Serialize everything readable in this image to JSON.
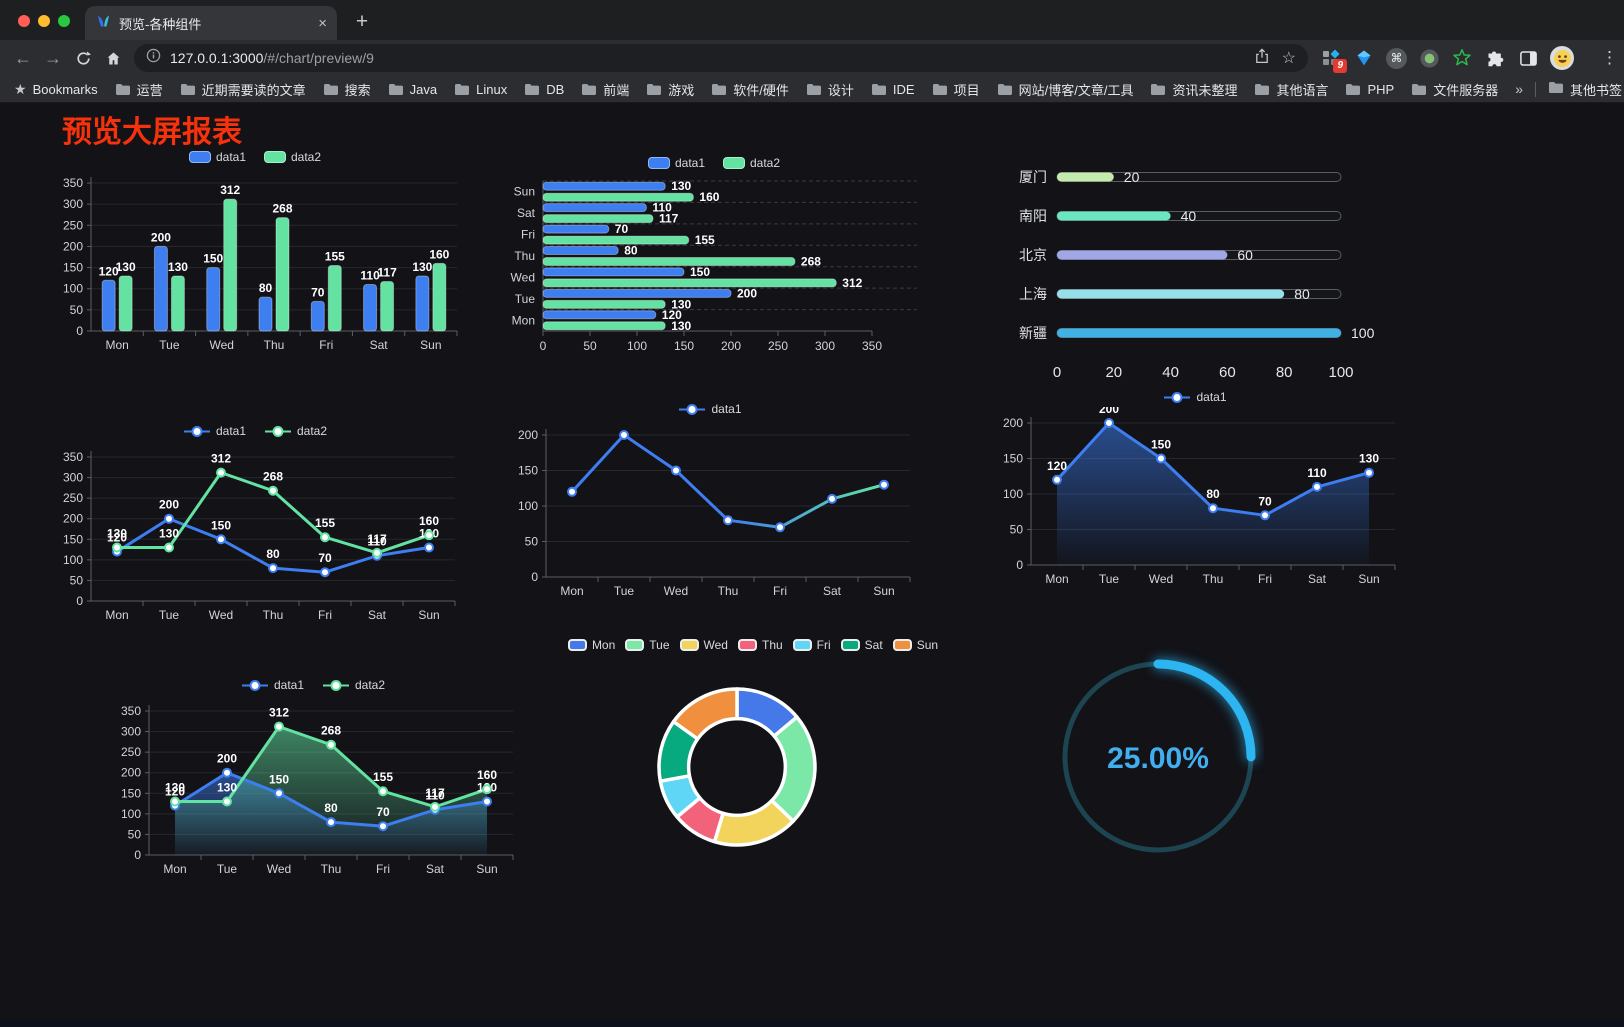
{
  "browser": {
    "traffic_lights": [
      "#ff5f57",
      "#febc2e",
      "#28c840"
    ],
    "tab_title": "预览-各种组件",
    "url_host": "127.0.0.1:3000",
    "url_path": "/#/chart/preview/9",
    "bookmarks_label": "Bookmarks",
    "bookmarks": [
      "运营",
      "近期需要读的文章",
      "搜索",
      "Java",
      "Linux",
      "DB",
      "前端",
      "游戏",
      "软件/硬件",
      "设计",
      "IDE",
      "项目",
      "网站/博客/文章/工具",
      "资讯未整理",
      "其他语言",
      "PHP",
      "文件服务器"
    ],
    "overflow_chevron": "»",
    "other_bookmarks": "其他书签",
    "extension_badge": "9"
  },
  "glyphs": {
    "close": "×",
    "plus": "+",
    "back": "←",
    "forward": "→",
    "menu": "⋮",
    "star": "☆",
    "bookmarks_star": "★",
    "command": "⌘"
  },
  "page": {
    "title": "预览大屏报表",
    "title_color": "#f5320b"
  },
  "theme": {
    "background": "#121217",
    "axis_color": "#5b5e66",
    "grid_color": "#26282e",
    "label_color": "#d2d4d9",
    "value_label_color": "#ffffff",
    "data1_color": "#3d7ef0",
    "data2_color": "#63e2a2"
  },
  "chart_data": [
    {
      "type": "bar",
      "title": "",
      "categories": [
        "Mon",
        "Tue",
        "Wed",
        "Thu",
        "Fri",
        "Sat",
        "Sun"
      ],
      "series": [
        {
          "name": "data1",
          "color": "#3d7ef0",
          "values": [
            120,
            200,
            150,
            80,
            70,
            110,
            130
          ]
        },
        {
          "name": "data2",
          "color": "#63e2a2",
          "values": [
            130,
            130,
            312,
            268,
            155,
            117,
            160
          ]
        }
      ],
      "ylim": [
        0,
        350
      ],
      "ystep": 50,
      "legend_position": "top",
      "grid": true
    },
    {
      "type": "hbar",
      "title": "",
      "categories": [
        "Mon",
        "Tue",
        "Wed",
        "Thu",
        "Fri",
        "Sat",
        "Sun"
      ],
      "categories_display_top_to_bottom": [
        "Sun",
        "Sat",
        "Fri",
        "Thu",
        "Wed",
        "Tue",
        "Mon"
      ],
      "series": [
        {
          "name": "data1",
          "color": "#3d7ef0",
          "values": [
            120,
            200,
            150,
            80,
            70,
            110,
            130
          ]
        },
        {
          "name": "data2",
          "color": "#63e2a2",
          "values": [
            130,
            130,
            312,
            268,
            155,
            117,
            160
          ]
        }
      ],
      "xlim": [
        0,
        350
      ],
      "xstep": 50,
      "legend_position": "top",
      "grid": true
    },
    {
      "type": "progress",
      "title": "",
      "xlim": [
        0,
        100
      ],
      "xticks": [
        0,
        20,
        40,
        60,
        80,
        100
      ],
      "rows": [
        {
          "label": "厦门",
          "value": 20,
          "color": "#c4ebad"
        },
        {
          "label": "南阳",
          "value": 40,
          "color": "#6be6c1"
        },
        {
          "label": "北京",
          "value": 60,
          "color": "#a0a7e6"
        },
        {
          "label": "上海",
          "value": 80,
          "color": "#96dee8"
        },
        {
          "label": "新疆",
          "value": 100,
          "color": "#3fb1e3"
        }
      ]
    },
    {
      "type": "line",
      "title": "",
      "categories": [
        "Mon",
        "Tue",
        "Wed",
        "Thu",
        "Fri",
        "Sat",
        "Sun"
      ],
      "series": [
        {
          "name": "data1",
          "color": "#3d7ef0",
          "values": [
            120,
            200,
            150,
            80,
            70,
            110,
            130
          ]
        },
        {
          "name": "data2",
          "color": "#63e2a2",
          "values": [
            130,
            130,
            312,
            268,
            155,
            117,
            160
          ]
        }
      ],
      "ylim": [
        0,
        350
      ],
      "ystep": 50,
      "labels": true,
      "legend_position": "top"
    },
    {
      "type": "line",
      "title": "",
      "categories": [
        "Mon",
        "Tue",
        "Wed",
        "Thu",
        "Fri",
        "Sat",
        "Sun"
      ],
      "series": [
        {
          "name": "data1",
          "color": "#3d7ef0",
          "gradient_stroke": [
            "#3d7ef0",
            "#63e2a2"
          ],
          "values": [
            120,
            200,
            150,
            80,
            70,
            110,
            130
          ]
        }
      ],
      "ylim": [
        0,
        200
      ],
      "ystep": 50,
      "labels": false,
      "legend_position": "top"
    },
    {
      "type": "line",
      "title": "",
      "categories": [
        "Mon",
        "Tue",
        "Wed",
        "Thu",
        "Fri",
        "Sat",
        "Sun"
      ],
      "series": [
        {
          "name": "data1",
          "color": "#3d7ef0",
          "area": true,
          "values": [
            120,
            200,
            150,
            80,
            70,
            110,
            130
          ]
        }
      ],
      "ylim": [
        0,
        200
      ],
      "ystep": 50,
      "labels": true,
      "legend_position": "top"
    },
    {
      "type": "line",
      "title": "",
      "categories": [
        "Mon",
        "Tue",
        "Wed",
        "Thu",
        "Fri",
        "Sat",
        "Sun"
      ],
      "series": [
        {
          "name": "data1",
          "color": "#3d7ef0",
          "area": true,
          "values": [
            120,
            200,
            150,
            80,
            70,
            110,
            130
          ]
        },
        {
          "name": "data2",
          "color": "#63e2a2",
          "area": true,
          "values": [
            130,
            130,
            312,
            268,
            155,
            117,
            160
          ]
        }
      ],
      "ylim": [
        0,
        350
      ],
      "ystep": 50,
      "labels": true,
      "legend_position": "top"
    },
    {
      "type": "pie",
      "title": "",
      "inner_radius_ratio": 0.62,
      "legend_position": "top",
      "legend": [
        "Mon",
        "Tue",
        "Wed",
        "Thu",
        "Fri",
        "Sat",
        "Sun"
      ],
      "values": [
        120,
        200,
        150,
        80,
        70,
        110,
        130
      ],
      "colors": [
        "#4579ea",
        "#7be8a8",
        "#f2d35c",
        "#f2637b",
        "#5fd6f5",
        "#07a97e",
        "#f0903f"
      ]
    },
    {
      "type": "gauge",
      "title": "",
      "percent": 25,
      "value_label": "25.00%",
      "arc_color": "#2db5f2",
      "track_color": "#1d4551",
      "text_color": "#41aef0"
    }
  ]
}
